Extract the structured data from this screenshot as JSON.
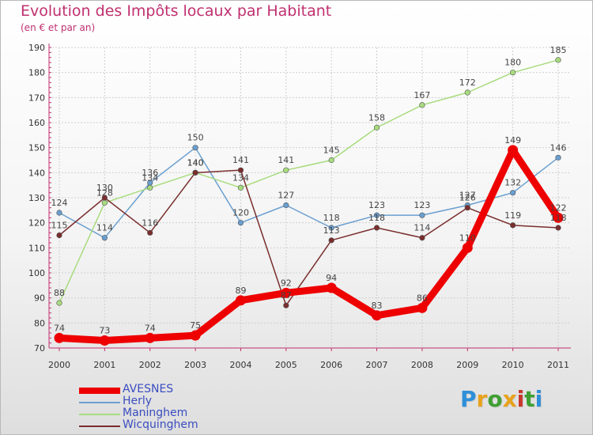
{
  "title": "Evolution des Impôts locaux par Habitant",
  "subtitle": "(en € et par an)",
  "logo": {
    "text": "Proxiti",
    "colors": [
      "#2e8fd9",
      "#e8a21b",
      "#3f9f33",
      "#e8a21b",
      "#c8372d",
      "#3f9f33",
      "#2e8fd9"
    ]
  },
  "chart_data": {
    "type": "line",
    "title": "Evolution des Impôts locaux par Habitant",
    "subtitle": "(en € et par an)",
    "x": [
      "2000",
      "2001",
      "2002",
      "2003",
      "2004",
      "2005",
      "2006",
      "2007",
      "2008",
      "2009",
      "2010",
      "2011"
    ],
    "ylim": [
      70,
      190
    ],
    "yticks": [
      70,
      80,
      90,
      100,
      110,
      120,
      130,
      140,
      150,
      160,
      170,
      180,
      190
    ],
    "grid": true,
    "legend_position": "bottom-left",
    "series": [
      {
        "name": "AVESNES",
        "color": "#ee0000",
        "width": 9,
        "values": [
          74,
          73,
          74,
          75,
          89,
          92,
          94,
          83,
          86,
          110,
          149,
          122
        ]
      },
      {
        "name": "Herly",
        "color": "#6a9fd0",
        "width": 1.5,
        "values": [
          124,
          114,
          136,
          150,
          120,
          127,
          118,
          123,
          123,
          127,
          132,
          146
        ]
      },
      {
        "name": "Maninghem",
        "color": "#a8dc7e",
        "width": 1.5,
        "values": [
          88,
          128,
          134,
          140,
          134,
          141,
          145,
          158,
          167,
          172,
          180,
          185
        ]
      },
      {
        "name": "Wicquinghem",
        "color": "#7a2d2d",
        "width": 1.5,
        "values": [
          115,
          130,
          116,
          140,
          141,
          87,
          113,
          118,
          114,
          126,
          119,
          118
        ]
      }
    ]
  }
}
